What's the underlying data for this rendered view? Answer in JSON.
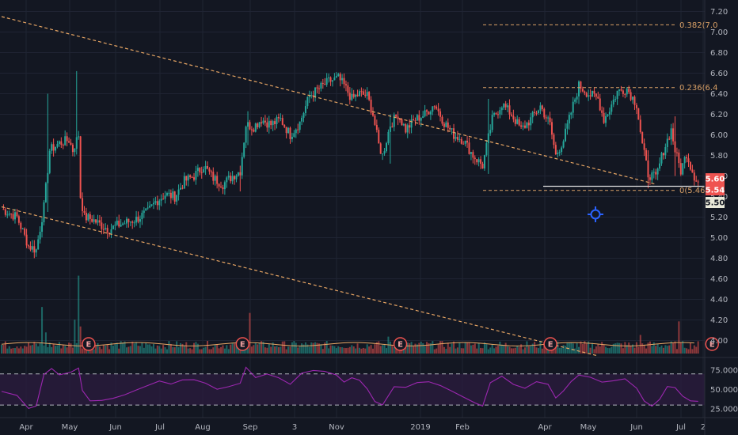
{
  "colors": {
    "background": "#131722",
    "grid": "#1f2433",
    "up": "#26a69a",
    "down": "#ef5350",
    "trendline": "#e8a664",
    "fib_label": "#d9a066",
    "rsi_line": "#9c27b0",
    "rsi_band": "#2a1b3d",
    "crosshair_icon": "#2962ff",
    "vol_ma": "#e8a664"
  },
  "chart_data": {
    "type": "candlestick",
    "price_axis": {
      "ticks": [
        "7.20",
        "7.00",
        "6.80",
        "6.60",
        "6.40",
        "6.20",
        "6.00",
        "5.80",
        "5.60",
        "5.40",
        "5.20",
        "5.00",
        "4.80",
        "4.60",
        "4.40",
        "4.20",
        "4.00"
      ],
      "range": [
        3.85,
        7.25
      ]
    },
    "price_tags": [
      {
        "label": "5.60",
        "value": 5.6,
        "color": "#ef5350",
        "text_color": "#ffffff"
      },
      {
        "label": "5.54",
        "value": 5.54,
        "color": "#ef5350",
        "text_color": "#ffffff"
      },
      {
        "label": "5.50",
        "value": 5.5,
        "color": "#e8e8d8",
        "text_color": "#131722"
      }
    ],
    "x_axis": {
      "ticks": [
        "Apr",
        "May",
        "Jun",
        "Jul",
        "Aug",
        "Sep",
        "3",
        "Nov",
        "2019",
        "Feb",
        "Apr",
        "May",
        "Jun",
        "Jul",
        "2"
      ]
    },
    "fib_levels": [
      {
        "label": "0.382(7.0",
        "value": 7.07
      },
      {
        "label": "0.236(6.4",
        "value": 6.46
      },
      {
        "label": "0(5.46)",
        "value": 5.46
      }
    ],
    "support_level": 5.5,
    "trendlines": [
      {
        "name": "upper",
        "from": {
          "i": 0,
          "v": 7.15
        },
        "to": {
          "i": 340,
          "v": 5.52
        }
      },
      {
        "name": "lower",
        "from": {
          "i": 0,
          "v": 5.3
        },
        "to": {
          "i": 310,
          "v": 3.85
        }
      }
    ],
    "close_path": [
      [
        0,
        5.28
      ],
      [
        8,
        5.2
      ],
      [
        14,
        4.92
      ],
      [
        18,
        4.88
      ],
      [
        22,
        5.3
      ],
      [
        25,
        5.85
      ],
      [
        30,
        5.92
      ],
      [
        35,
        5.95
      ],
      [
        37,
        5.85
      ],
      [
        40,
        6.0
      ],
      [
        41,
        5.4
      ],
      [
        43,
        5.2
      ],
      [
        47,
        5.18
      ],
      [
        52,
        5.12
      ],
      [
        56,
        5.08
      ],
      [
        60,
        5.12
      ],
      [
        65,
        5.15
      ],
      [
        70,
        5.18
      ],
      [
        76,
        5.25
      ],
      [
        80,
        5.35
      ],
      [
        85,
        5.42
      ],
      [
        90,
        5.4
      ],
      [
        95,
        5.55
      ],
      [
        100,
        5.6
      ],
      [
        105,
        5.7
      ],
      [
        110,
        5.58
      ],
      [
        115,
        5.52
      ],
      [
        120,
        5.6
      ],
      [
        124,
        5.65
      ],
      [
        127,
        6.1
      ],
      [
        131,
        6.08
      ],
      [
        135,
        6.15
      ],
      [
        140,
        6.1
      ],
      [
        145,
        6.15
      ],
      [
        150,
        6.0
      ],
      [
        155,
        6.12
      ],
      [
        160,
        6.38
      ],
      [
        165,
        6.45
      ],
      [
        170,
        6.52
      ],
      [
        175,
        6.55
      ],
      [
        178,
        6.48
      ],
      [
        182,
        6.35
      ],
      [
        186,
        6.4
      ],
      [
        190,
        6.38
      ],
      [
        193,
        6.2
      ],
      [
        196,
        5.9
      ],
      [
        198,
        5.8
      ],
      [
        202,
        6.1
      ],
      [
        206,
        6.2
      ],
      [
        210,
        6.05
      ],
      [
        215,
        6.15
      ],
      [
        220,
        6.2
      ],
      [
        225,
        6.3
      ],
      [
        230,
        6.12
      ],
      [
        235,
        6.0
      ],
      [
        240,
        5.95
      ],
      [
        245,
        5.8
      ],
      [
        250,
        5.7
      ],
      [
        255,
        6.15
      ],
      [
        260,
        6.3
      ],
      [
        265,
        6.2
      ],
      [
        270,
        6.05
      ],
      [
        275,
        6.15
      ],
      [
        280,
        6.28
      ],
      [
        285,
        6.1
      ],
      [
        288,
        5.8
      ],
      [
        292,
        5.95
      ],
      [
        296,
        6.22
      ],
      [
        300,
        6.48
      ],
      [
        305,
        6.4
      ],
      [
        310,
        6.35
      ],
      [
        313,
        6.15
      ],
      [
        316,
        6.25
      ],
      [
        320,
        6.42
      ],
      [
        325,
        6.45
      ],
      [
        330,
        6.3
      ],
      [
        333,
        5.9
      ],
      [
        336,
        5.62
      ],
      [
        340,
        5.58
      ],
      [
        344,
        5.85
      ],
      [
        348,
        6.05
      ],
      [
        350,
        5.85
      ],
      [
        353,
        5.65
      ],
      [
        356,
        5.82
      ],
      [
        358,
        5.7
      ],
      [
        360,
        5.6
      ],
      [
        362,
        5.54
      ]
    ],
    "spikes": [
      {
        "i": 24,
        "hi": 6.4,
        "lo": 5.25
      },
      {
        "i": 39,
        "hi": 6.62,
        "lo": 5.85
      },
      {
        "i": 124,
        "hi": 5.7,
        "lo": 5.45
      },
      {
        "i": 128,
        "hi": 6.23,
        "lo": 5.9
      },
      {
        "i": 202,
        "hi": 6.2,
        "lo": 5.72
      },
      {
        "i": 253,
        "hi": 6.35,
        "lo": 5.62
      },
      {
        "i": 300,
        "hi": 6.52,
        "lo": 6.3
      },
      {
        "i": 350,
        "hi": 6.18,
        "lo": 5.6
      },
      {
        "i": 336,
        "hi": 5.85,
        "lo": 5.48
      }
    ],
    "n_bars": 363,
    "volume_spikes": [
      {
        "i": 21,
        "h": 0.55
      },
      {
        "i": 23,
        "h": 0.25
      },
      {
        "i": 38,
        "h": 0.4
      },
      {
        "i": 40,
        "h": 0.92
      },
      {
        "i": 41,
        "h": 0.32
      },
      {
        "i": 129,
        "h": 0.48
      },
      {
        "i": 201,
        "h": 0.2
      },
      {
        "i": 332,
        "h": 0.22
      },
      {
        "i": 352,
        "h": 0.38
      }
    ],
    "earnings_markers": [
      {
        "label": "E",
        "i": 44
      },
      {
        "label": "E",
        "i": 124
      },
      {
        "label": "E",
        "i": 206
      },
      {
        "label": "E",
        "i": 284
      },
      {
        "label": "E",
        "i": 368
      }
    ],
    "rsi": {
      "ticks": [
        "75.0000",
        "50.0000",
        "25.0000"
      ],
      "range": [
        20,
        85
      ],
      "upper": 70,
      "lower": 30,
      "path": [
        [
          0,
          48
        ],
        [
          8,
          42
        ],
        [
          14,
          26
        ],
        [
          18,
          28
        ],
        [
          22,
          70
        ],
        [
          26,
          78
        ],
        [
          30,
          68
        ],
        [
          36,
          72
        ],
        [
          40,
          78
        ],
        [
          42,
          48
        ],
        [
          46,
          34
        ],
        [
          52,
          36
        ],
        [
          58,
          40
        ],
        [
          64,
          42
        ],
        [
          70,
          48
        ],
        [
          76,
          56
        ],
        [
          82,
          60
        ],
        [
          88,
          58
        ],
        [
          94,
          62
        ],
        [
          100,
          64
        ],
        [
          106,
          58
        ],
        [
          112,
          50
        ],
        [
          118,
          55
        ],
        [
          124,
          58
        ],
        [
          127,
          78
        ],
        [
          132,
          66
        ],
        [
          138,
          70
        ],
        [
          144,
          66
        ],
        [
          150,
          58
        ],
        [
          156,
          70
        ],
        [
          162,
          74
        ],
        [
          168,
          72
        ],
        [
          174,
          70
        ],
        [
          178,
          60
        ],
        [
          182,
          66
        ],
        [
          186,
          62
        ],
        [
          190,
          50
        ],
        [
          194,
          35
        ],
        [
          198,
          30
        ],
        [
          204,
          54
        ],
        [
          210,
          52
        ],
        [
          216,
          58
        ],
        [
          222,
          60
        ],
        [
          228,
          54
        ],
        [
          234,
          48
        ],
        [
          240,
          40
        ],
        [
          246,
          34
        ],
        [
          250,
          30
        ],
        [
          254,
          60
        ],
        [
          260,
          66
        ],
        [
          266,
          58
        ],
        [
          272,
          52
        ],
        [
          278,
          60
        ],
        [
          284,
          56
        ],
        [
          288,
          38
        ],
        [
          292,
          48
        ],
        [
          296,
          60
        ],
        [
          300,
          70
        ],
        [
          306,
          66
        ],
        [
          312,
          58
        ],
        [
          318,
          62
        ],
        [
          324,
          64
        ],
        [
          330,
          52
        ],
        [
          334,
          34
        ],
        [
          338,
          30
        ],
        [
          342,
          38
        ],
        [
          346,
          54
        ],
        [
          350,
          52
        ],
        [
          354,
          40
        ],
        [
          358,
          36
        ],
        [
          362,
          34
        ]
      ]
    }
  }
}
